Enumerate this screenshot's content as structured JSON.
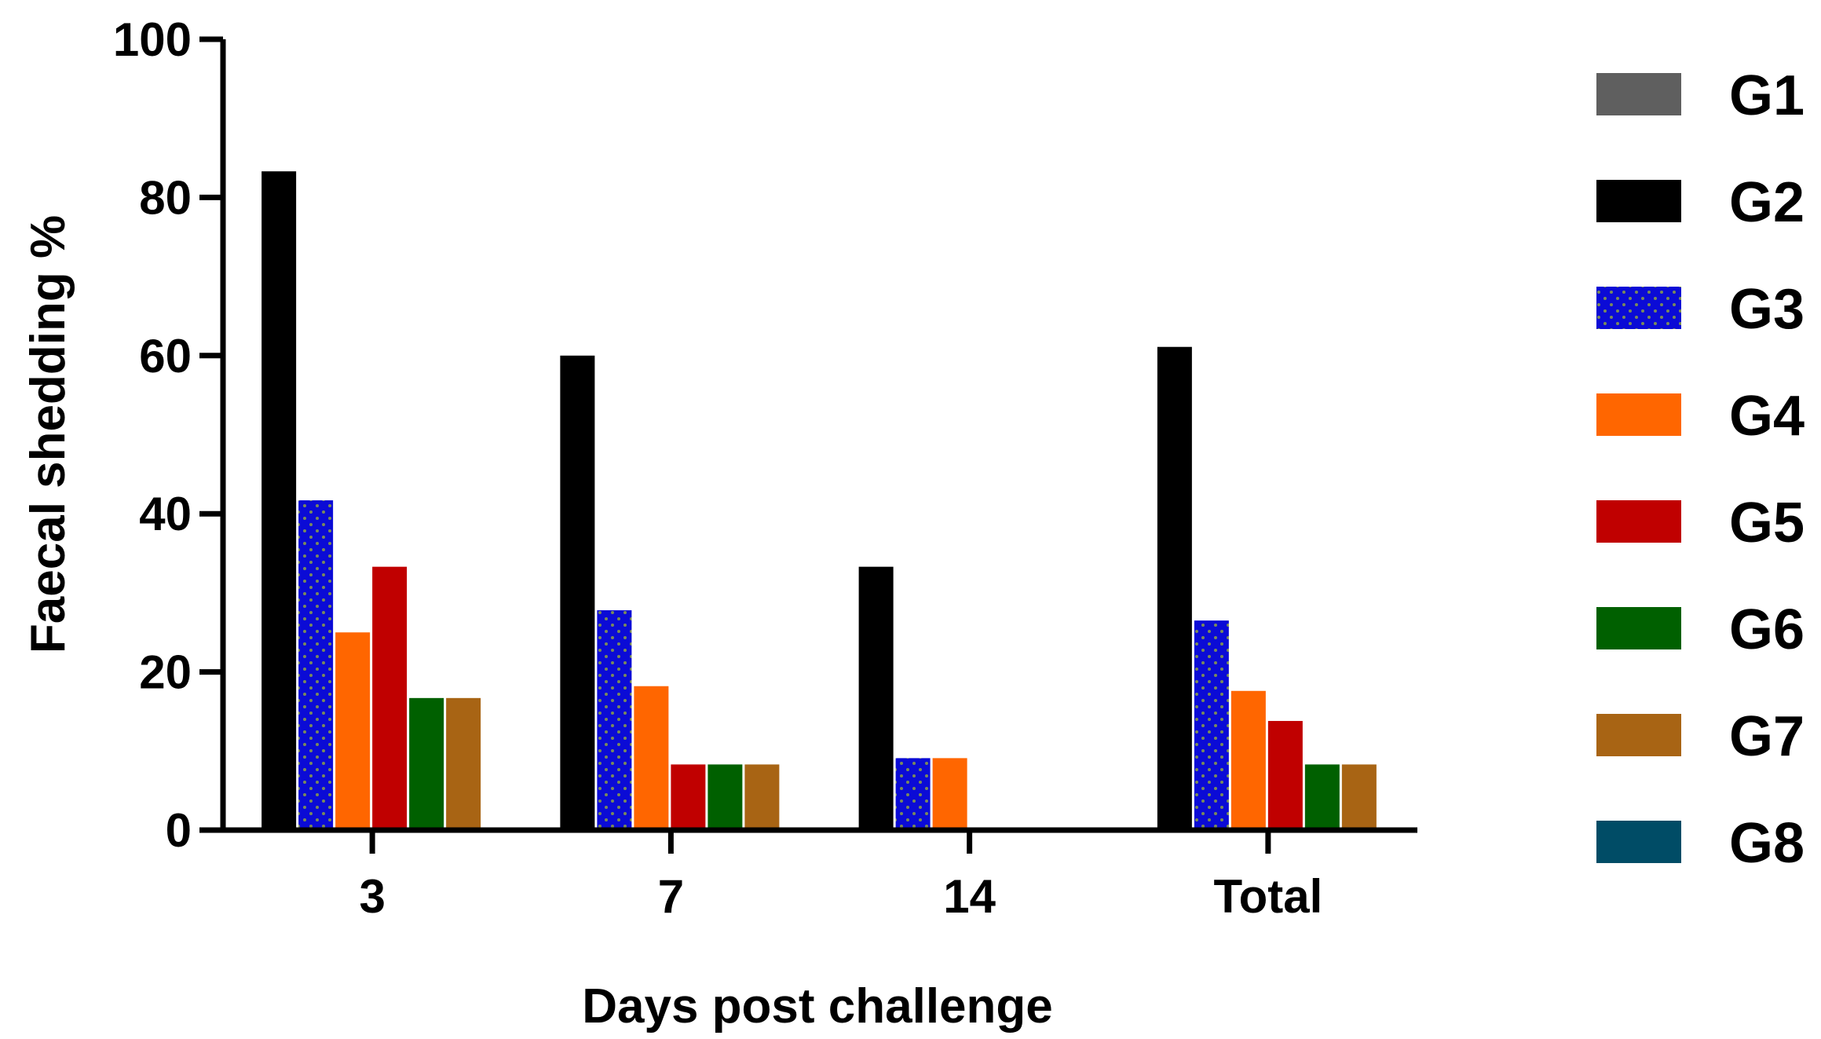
{
  "chart_data": {
    "type": "bar",
    "title": "",
    "xlabel": "Days post challenge",
    "ylabel": "Faecal shedding %",
    "categories": [
      "3",
      "7",
      "14",
      "Total"
    ],
    "ylim": [
      0,
      100
    ],
    "yticks": [
      "0",
      "20",
      "40",
      "60",
      "80",
      "100"
    ],
    "grid": false,
    "legend_position": "right",
    "series": [
      {
        "name": "G1",
        "color": "#5f5f5f",
        "pattern": "solid",
        "values": [
          0,
          0,
          0,
          0
        ]
      },
      {
        "name": "G2",
        "color": "#000000",
        "pattern": "solid",
        "values": [
          83.3,
          60,
          33.3,
          61.1
        ]
      },
      {
        "name": "G3",
        "color": "#0b0bd6",
        "pattern": "dotted",
        "values": [
          41.7,
          27.8,
          9.1,
          26.5
        ]
      },
      {
        "name": "G4",
        "color": "#ff6600",
        "pattern": "solid",
        "values": [
          25,
          18.2,
          9.1,
          17.6
        ]
      },
      {
        "name": "G5",
        "color": "#c00000",
        "pattern": "solid",
        "values": [
          33.3,
          8.3,
          0,
          13.8
        ]
      },
      {
        "name": "G6",
        "color": "#006000",
        "pattern": "solid",
        "values": [
          16.7,
          8.3,
          0,
          8.3
        ]
      },
      {
        "name": "G7",
        "color": "#a86414",
        "pattern": "solid",
        "values": [
          16.7,
          8.3,
          0,
          8.3
        ]
      },
      {
        "name": "G8",
        "color": "#004c66",
        "pattern": "solid",
        "values": [
          0,
          0,
          0,
          0
        ]
      }
    ]
  }
}
